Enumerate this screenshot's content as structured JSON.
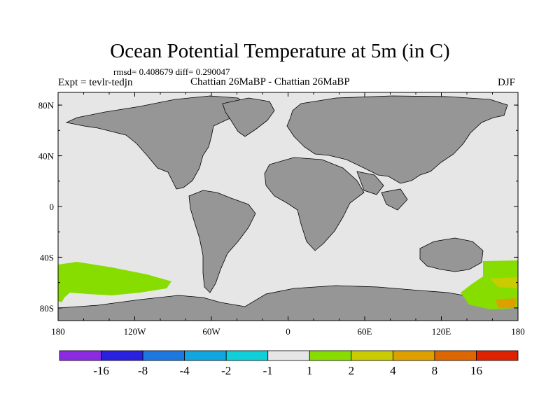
{
  "title": "Ocean Potential Temperature at 5m (in C)",
  "stats": "rmsd= 0.408679 diff= 0.290047",
  "left_label": "Expt = tevlr-tedjn",
  "center_label": "Chattian  26MaBP - Chattian  26MaBP",
  "right_label": "DJF",
  "colors": {
    "ocean": "#e6e6e6",
    "land": "#969696",
    "anomaly_1_2": "#88dd00",
    "anomaly_2_4": "#c8cc00",
    "anomaly_4_8": "#dda000"
  },
  "map": {
    "projection": "cylindrical-equidistant",
    "lon_range": [
      -180,
      180
    ],
    "lat_range": [
      -90,
      90
    ],
    "x_ticks": [
      {
        "lon": -180,
        "label": "180"
      },
      {
        "lon": -120,
        "label": "120W"
      },
      {
        "lon": -60,
        "label": "60W"
      },
      {
        "lon": 0,
        "label": "0"
      },
      {
        "lon": 60,
        "label": "60E"
      },
      {
        "lon": 120,
        "label": "120E"
      },
      {
        "lon": 180,
        "label": "180"
      }
    ],
    "y_ticks": [
      {
        "lat": 80,
        "label": "80N"
      },
      {
        "lat": 40,
        "label": "40N"
      },
      {
        "lat": 0,
        "label": "0"
      },
      {
        "lat": -40,
        "label": "40S"
      },
      {
        "lat": -80,
        "label": "80S"
      }
    ]
  },
  "colorbar": {
    "colors": [
      "#8a2be2",
      "#2a20e0",
      "#1c78e0",
      "#12a6e0",
      "#10cfd8",
      "#e6e6e6",
      "#88dd00",
      "#c8cc00",
      "#dda000",
      "#dd6600",
      "#dd2200"
    ],
    "labels": [
      "-16",
      "-8",
      "-4",
      "-2",
      "-1",
      "1",
      "2",
      "4",
      "8",
      "16"
    ]
  }
}
